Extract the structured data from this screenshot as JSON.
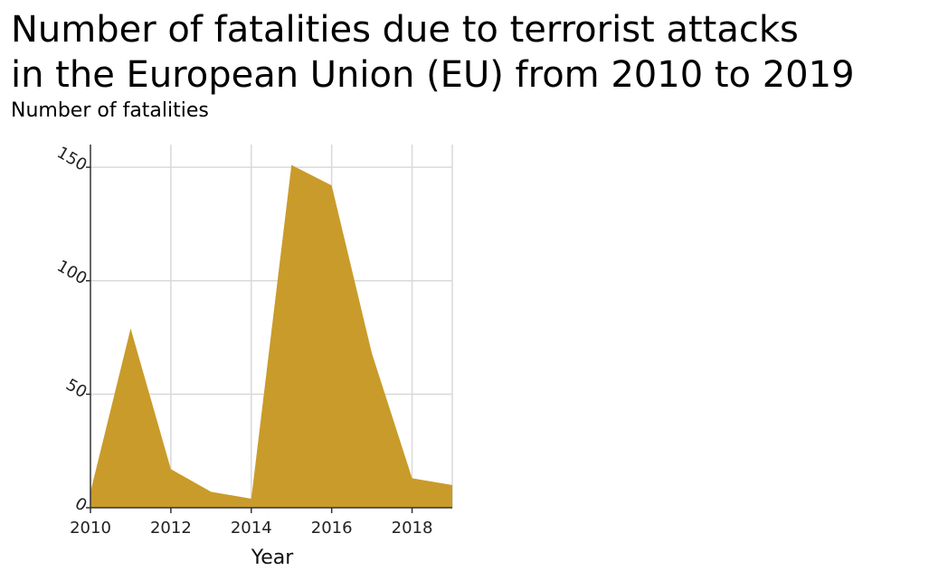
{
  "chart_data": {
    "type": "area",
    "title_lines": [
      "Number of fatalities due to terrorist attacks",
      "in the European Union (EU) from 2010 to 2019"
    ],
    "ylabel": "Number of fatalities",
    "xlabel": "Year",
    "x": [
      2010,
      2011,
      2012,
      2013,
      2014,
      2015,
      2016,
      2017,
      2018,
      2019
    ],
    "series": [
      {
        "values": [
          7,
          79,
          17,
          7,
          4,
          151,
          142,
          68,
          13,
          10
        ]
      }
    ],
    "xlim": [
      2010,
      2019
    ],
    "ylim": [
      0,
      160
    ],
    "x_ticks": [
      2010,
      2012,
      2014,
      2016,
      2018
    ],
    "x_tick_labels": [
      "2010",
      "2012",
      "2014",
      "2016",
      "2018"
    ],
    "y_ticks": [
      0,
      50,
      100,
      150
    ],
    "y_tick_labels": [
      "0",
      "50",
      "100",
      "150"
    ],
    "grid": true,
    "fill_color": "#c99b2a",
    "grid_color": "#d9d9d9"
  }
}
